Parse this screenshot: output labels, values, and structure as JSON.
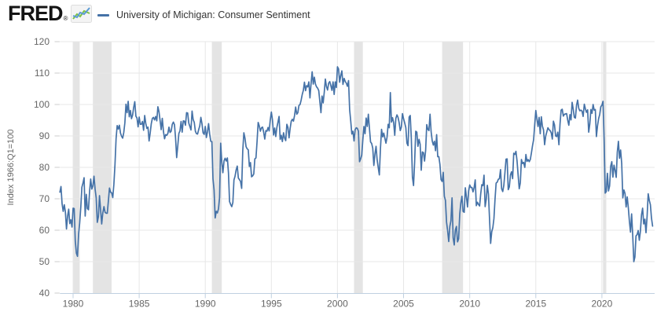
{
  "header": {
    "brand": "FRED",
    "registered": "®"
  },
  "chart_data": {
    "type": "line",
    "title": "University of Michigan: Consumer Sentiment",
    "ylabel": "Index 1966:Q1=100",
    "ylim": [
      40,
      120
    ],
    "yticks": [
      40,
      50,
      60,
      70,
      80,
      90,
      100,
      110,
      120
    ],
    "xticks": [
      1980,
      1985,
      1990,
      1995,
      2000,
      2005,
      2010,
      2015,
      2020
    ],
    "x_domain": [
      1979.0,
      2024.08
    ],
    "grid": "on",
    "legend_position": "top-left",
    "frequency": "monthly",
    "recessions": [
      [
        1980.0,
        1980.5
      ],
      [
        1981.5,
        1982.917
      ],
      [
        1990.5,
        1991.25
      ],
      [
        2001.25,
        2001.917
      ],
      [
        2007.917,
        2009.5
      ],
      [
        2020.083,
        2020.333
      ]
    ],
    "colors": {
      "line": "#4572a7",
      "recession": "#e4e4e4",
      "grid": "#e7e7e7",
      "axis": "#c0d0e0",
      "y_tick": "#cccccc",
      "tick_label": "#666666",
      "legend_text": "#333333",
      "logo_green": "#7dc242",
      "logo_blue": "#5b9bd5"
    },
    "series": [
      {
        "name": "University of Michigan: Consumer Sentiment",
        "start": "1979-01",
        "end": "2023-11",
        "values_by_year": {
          "1979": [
            72.1,
            73.9,
            68.4,
            66.0,
            68.1,
            65.8,
            60.4,
            64.5,
            66.7,
            62.1,
            63.3,
            61.0
          ],
          "1980": [
            67.0,
            66.9,
            56.5,
            52.7,
            51.7,
            58.7,
            62.3,
            67.3,
            73.7,
            75.0,
            76.7,
            64.5
          ],
          "1981": [
            71.4,
            66.9,
            66.5,
            72.4,
            76.3,
            73.1,
            74.1,
            77.2,
            73.1,
            70.3,
            62.5,
            64.3
          ],
          "1982": [
            71.0,
            66.5,
            62.0,
            65.5,
            67.5,
            65.7,
            65.4,
            65.4,
            69.3,
            73.4,
            72.1,
            71.9
          ],
          "1983": [
            70.4,
            74.6,
            80.8,
            89.1,
            93.3,
            92.2,
            93.4,
            90.9,
            89.9,
            89.3,
            91.1,
            94.2
          ],
          "1984": [
            100.1,
            97.4,
            101.0,
            96.1,
            98.1,
            95.5,
            96.6,
            99.1,
            100.9,
            96.3,
            95.7,
            92.9
          ],
          "1985": [
            96.0,
            93.7,
            93.7,
            94.6,
            91.8,
            96.5,
            94.0,
            92.4,
            92.8,
            88.4,
            90.9,
            93.9
          ],
          "1986": [
            95.6,
            95.9,
            95.1,
            96.2,
            94.8,
            99.3,
            97.7,
            94.9,
            92.0,
            95.6,
            91.4,
            89.1
          ],
          "1987": [
            90.4,
            90.2,
            90.8,
            92.8,
            91.1,
            91.5,
            93.7,
            94.4,
            93.6,
            89.3,
            83.1,
            86.8
          ],
          "1988": [
            90.8,
            91.6,
            94.6,
            91.2,
            94.8,
            94.7,
            93.4,
            97.4,
            97.3,
            94.1,
            93.0,
            91.9
          ],
          "1989": [
            97.9,
            95.2,
            94.3,
            91.5,
            90.7,
            90.6,
            92.0,
            93.2,
            95.9,
            93.9,
            91.0,
            90.5
          ],
          "1990": [
            93.0,
            89.5,
            91.3,
            93.9,
            90.6,
            88.3,
            88.2,
            76.4,
            72.8,
            63.9,
            66.0,
            65.5
          ],
          "1991": [
            66.8,
            70.4,
            87.7,
            81.8,
            78.3,
            82.1,
            82.9,
            82.0,
            83.0,
            78.3,
            69.1,
            68.2
          ],
          "1992": [
            67.5,
            68.8,
            76.0,
            77.2,
            79.2,
            80.4,
            76.6,
            76.1,
            75.5,
            73.3,
            85.3,
            91.0
          ],
          "1993": [
            89.3,
            86.6,
            85.9,
            85.6,
            80.3,
            81.5,
            77.0,
            77.3,
            77.9,
            82.7,
            83.0,
            88.2
          ],
          "1994": [
            94.3,
            93.2,
            91.5,
            92.6,
            92.8,
            91.2,
            89.0,
            91.7,
            91.5,
            92.7,
            91.6,
            95.1
          ],
          "1995": [
            97.6,
            95.1,
            90.3,
            92.5,
            89.8,
            92.7,
            94.4,
            96.2,
            88.9,
            90.2,
            88.2,
            91.0
          ],
          "1996": [
            89.3,
            88.5,
            93.7,
            92.7,
            89.4,
            92.4,
            94.7,
            95.3,
            94.7,
            96.5,
            99.2,
            96.9
          ],
          "1997": [
            97.4,
            99.7,
            100.0,
            101.4,
            103.2,
            104.5,
            107.1,
            104.4,
            106.0,
            105.6,
            107.2,
            102.1
          ],
          "1998": [
            106.6,
            110.4,
            106.5,
            108.7,
            106.5,
            105.6,
            105.2,
            104.4,
            100.9,
            97.4,
            102.7,
            100.5
          ],
          "1999": [
            103.9,
            108.1,
            105.7,
            104.6,
            106.8,
            107.3,
            106.0,
            104.5,
            107.2,
            103.2,
            107.2,
            105.4
          ],
          "2000": [
            112.0,
            111.3,
            107.1,
            109.2,
            110.7,
            106.4,
            108.3,
            107.3,
            106.8,
            105.8,
            107.6,
            98.4
          ],
          "2001": [
            94.7,
            90.6,
            91.5,
            88.4,
            92.0,
            92.6,
            92.4,
            91.5,
            81.8,
            82.7,
            83.9,
            88.8
          ],
          "2002": [
            93.0,
            90.7,
            95.7,
            93.0,
            96.9,
            92.4,
            88.1,
            87.6,
            86.1,
            80.6,
            84.2,
            86.7
          ],
          "2003": [
            82.4,
            79.9,
            77.6,
            86.0,
            92.1,
            89.7,
            90.9,
            89.3,
            87.7,
            89.6,
            93.7,
            92.6
          ],
          "2004": [
            103.8,
            94.4,
            95.8,
            94.2,
            90.2,
            95.6,
            96.7,
            95.9,
            94.2,
            91.7,
            92.8,
            97.1
          ],
          "2005": [
            95.5,
            94.1,
            92.6,
            87.7,
            86.9,
            96.0,
            96.5,
            89.1,
            76.9,
            74.2,
            81.6,
            91.5
          ],
          "2006": [
            91.2,
            86.7,
            88.9,
            87.4,
            79.1,
            84.9,
            84.7,
            82.0,
            85.4,
            93.6,
            92.1,
            91.7
          ],
          "2007": [
            96.9,
            91.3,
            88.4,
            87.1,
            88.3,
            85.3,
            90.4,
            83.4,
            83.4,
            80.9,
            76.1,
            75.5
          ],
          "2008": [
            78.4,
            70.8,
            69.5,
            62.6,
            59.8,
            56.4,
            61.2,
            63.0,
            70.3,
            57.6,
            55.3,
            60.1
          ],
          "2009": [
            61.2,
            56.3,
            57.3,
            65.1,
            68.7,
            70.8,
            66.0,
            65.7,
            73.5,
            70.6,
            67.4,
            72.5
          ],
          "2010": [
            74.4,
            73.6,
            73.6,
            72.2,
            73.6,
            76.0,
            67.8,
            68.9,
            68.2,
            67.7,
            71.6,
            74.5
          ],
          "2011": [
            74.2,
            77.5,
            67.5,
            69.8,
            74.3,
            71.5,
            63.7,
            55.8,
            59.5,
            60.8,
            63.7,
            69.9
          ],
          "2012": [
            75.0,
            75.3,
            76.2,
            76.4,
            79.3,
            73.2,
            72.3,
            74.3,
            78.3,
            82.6,
            82.7,
            72.9
          ],
          "2013": [
            73.8,
            77.6,
            78.6,
            76.4,
            84.5,
            84.1,
            85.1,
            82.1,
            77.5,
            73.2,
            75.1,
            82.5
          ],
          "2014": [
            81.2,
            81.6,
            80.0,
            84.1,
            81.9,
            82.5,
            81.8,
            82.5,
            84.6,
            86.9,
            88.8,
            93.6
          ],
          "2015": [
            98.1,
            95.4,
            93.0,
            95.9,
            90.7,
            96.1,
            93.1,
            91.9,
            87.2,
            90.0,
            91.3,
            92.6
          ],
          "2016": [
            92.0,
            91.7,
            91.0,
            89.0,
            94.7,
            93.5,
            90.0,
            89.8,
            91.2,
            87.2,
            93.8,
            98.2
          ],
          "2017": [
            98.5,
            96.3,
            96.9,
            97.0,
            97.1,
            95.0,
            93.4,
            96.8,
            95.1,
            100.7,
            98.5,
            95.9
          ],
          "2018": [
            95.7,
            99.7,
            101.4,
            98.8,
            98.0,
            98.2,
            97.9,
            96.2,
            100.1,
            98.6,
            97.5,
            98.3
          ],
          "2019": [
            91.2,
            93.8,
            98.4,
            97.2,
            100.0,
            98.2,
            98.4,
            89.8,
            93.2,
            95.5,
            96.8,
            99.3
          ],
          "2020": [
            99.8,
            101.0,
            89.1,
            71.8,
            72.3,
            78.1,
            72.5,
            74.1,
            80.4,
            81.8,
            76.9,
            80.7
          ],
          "2021": [
            79.0,
            76.8,
            84.9,
            88.3,
            82.9,
            85.5,
            81.2,
            70.3,
            72.8,
            71.7,
            67.4,
            70.6
          ],
          "2022": [
            67.2,
            62.8,
            59.4,
            65.2,
            58.4,
            50.0,
            51.5,
            58.2,
            58.6,
            59.9,
            56.8,
            59.7
          ],
          "2023": [
            64.9,
            67.0,
            62.0,
            63.5,
            59.2,
            64.4,
            71.6,
            69.5,
            68.1,
            63.8,
            61.3
          ]
        }
      }
    ]
  }
}
